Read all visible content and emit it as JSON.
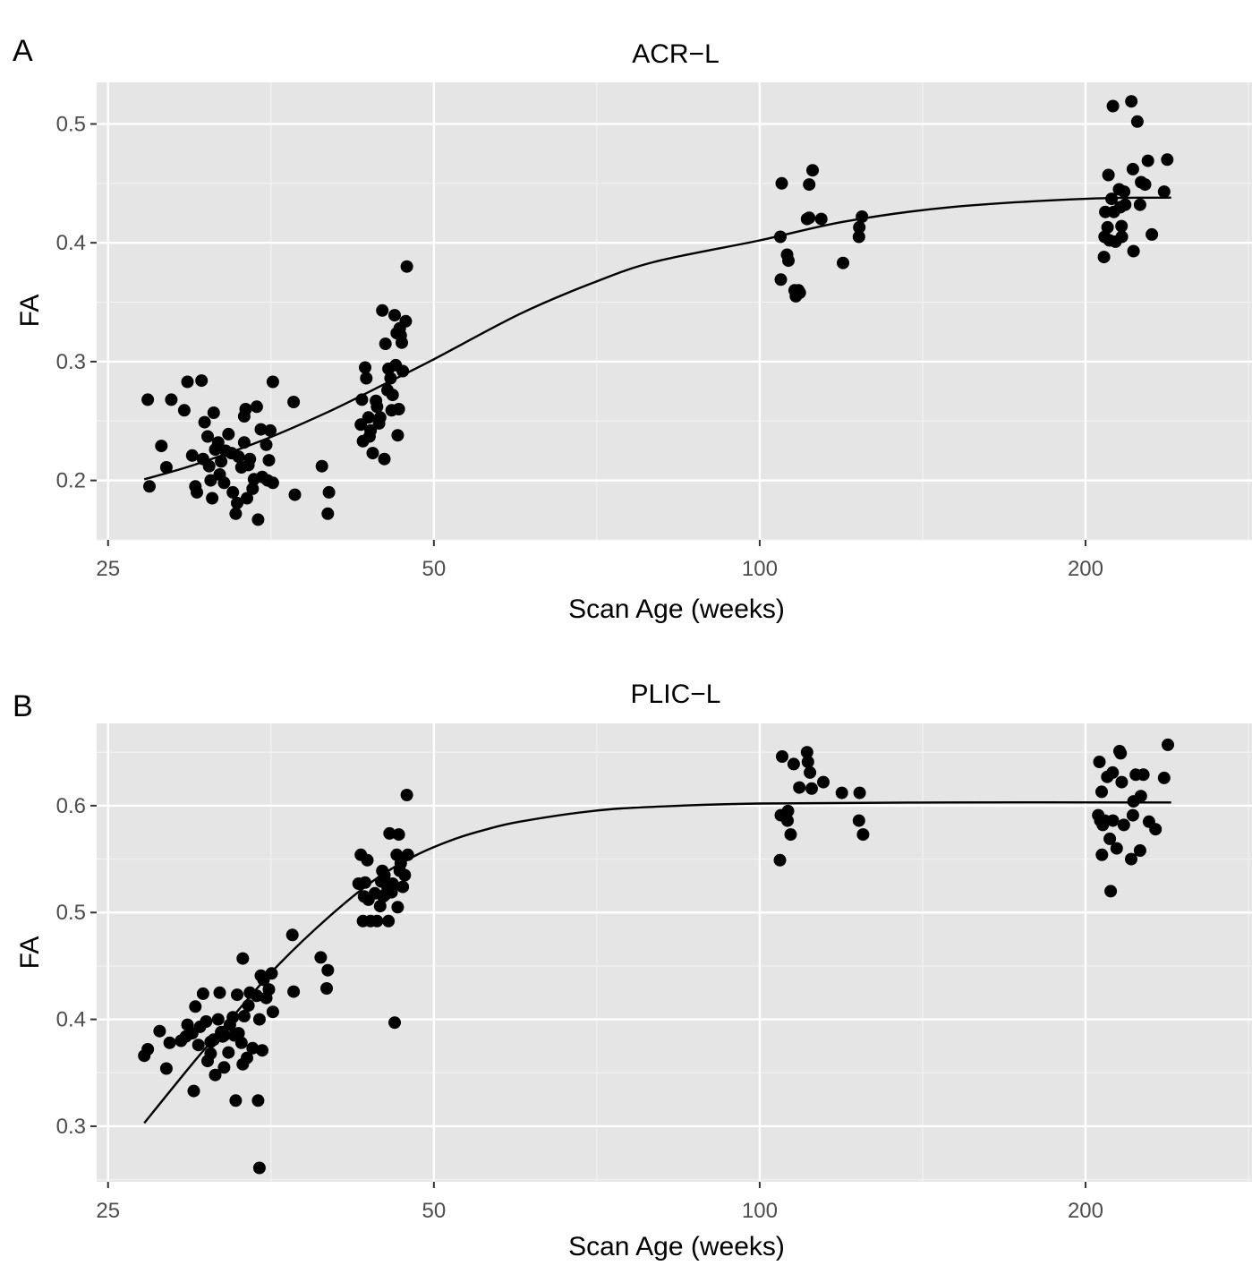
{
  "chart_data": [
    {
      "panel": "A",
      "type": "scatter",
      "title": "ACR−L",
      "xlabel": "Scan Age (weeks)",
      "ylabel": "FA",
      "xscale": "log",
      "xlim": [
        24.4,
        285
      ],
      "ylim": [
        0.15,
        0.535
      ],
      "xticks": [
        25,
        50,
        100,
        200
      ],
      "xtick_labels": [
        "25",
        "50",
        "100",
        "200"
      ],
      "yticks": [
        0.2,
        0.3,
        0.4,
        0.5
      ],
      "ytick_labels": [
        "0.2",
        "0.3",
        "0.4",
        "0.5"
      ],
      "grid": true,
      "points": [
        [
          27.2,
          0.268
        ],
        [
          27.3,
          0.195
        ],
        [
          28,
          0.229
        ],
        [
          28.3,
          0.211
        ],
        [
          28.6,
          0.268
        ],
        [
          29.4,
          0.259
        ],
        [
          29.6,
          0.283
        ],
        [
          29.9,
          0.221
        ],
        [
          30.1,
          0.195
        ],
        [
          30.2,
          0.19
        ],
        [
          30.5,
          0.284
        ],
        [
          30.6,
          0.218
        ],
        [
          30.7,
          0.249
        ],
        [
          30.9,
          0.237
        ],
        [
          31,
          0.212
        ],
        [
          31.1,
          0.2
        ],
        [
          31.2,
          0.185
        ],
        [
          31.3,
          0.257
        ],
        [
          31.4,
          0.226
        ],
        [
          31.6,
          0.232
        ],
        [
          31.7,
          0.205
        ],
        [
          31.8,
          0.216
        ],
        [
          32,
          0.198
        ],
        [
          32.1,
          0.225
        ],
        [
          32.3,
          0.239
        ],
        [
          32.5,
          0.223
        ],
        [
          32.6,
          0.19
        ],
        [
          32.8,
          0.172
        ],
        [
          32.9,
          0.181
        ],
        [
          33,
          0.22
        ],
        [
          33.2,
          0.211
        ],
        [
          33.4,
          0.232
        ],
        [
          33.4,
          0.254
        ],
        [
          33.5,
          0.26
        ],
        [
          33.6,
          0.185
        ],
        [
          33.7,
          0.213
        ],
        [
          33.8,
          0.218
        ],
        [
          34,
          0.193
        ],
        [
          34.1,
          0.201
        ],
        [
          34.3,
          0.262
        ],
        [
          34.4,
          0.167
        ],
        [
          34.6,
          0.243
        ],
        [
          34.7,
          0.203
        ],
        [
          35,
          0.23
        ],
        [
          35.1,
          0.2
        ],
        [
          35.2,
          0.217
        ],
        [
          35.3,
          0.242
        ],
        [
          35.5,
          0.283
        ],
        [
          35.5,
          0.198
        ],
        [
          37.1,
          0.266
        ],
        [
          37.2,
          0.188
        ],
        [
          39.4,
          0.212
        ],
        [
          39.9,
          0.172
        ],
        [
          40,
          0.19
        ],
        [
          42.8,
          0.247
        ],
        [
          42.9,
          0.268
        ],
        [
          43,
          0.233
        ],
        [
          43.2,
          0.295
        ],
        [
          43.3,
          0.286
        ],
        [
          43.5,
          0.253
        ],
        [
          43.6,
          0.237
        ],
        [
          43.7,
          0.242
        ],
        [
          43.9,
          0.223
        ],
        [
          44.2,
          0.267
        ],
        [
          44.3,
          0.262
        ],
        [
          44.5,
          0.248
        ],
        [
          44.6,
          0.253
        ],
        [
          44.8,
          0.343
        ],
        [
          45,
          0.218
        ],
        [
          45.1,
          0.315
        ],
        [
          45.3,
          0.276
        ],
        [
          45.4,
          0.294
        ],
        [
          45.6,
          0.286
        ],
        [
          45.7,
          0.259
        ],
        [
          45.8,
          0.272
        ],
        [
          46,
          0.339
        ],
        [
          46.1,
          0.297
        ],
        [
          46.2,
          0.324
        ],
        [
          46.3,
          0.238
        ],
        [
          46.4,
          0.26
        ],
        [
          46.5,
          0.328
        ],
        [
          46.6,
          0.322
        ],
        [
          46.7,
          0.316
        ],
        [
          46.8,
          0.292
        ],
        [
          47.1,
          0.334
        ],
        [
          47.2,
          0.38
        ],
        [
          104.5,
          0.405
        ],
        [
          104.6,
          0.369
        ],
        [
          104.8,
          0.45
        ],
        [
          106,
          0.39
        ],
        [
          106.3,
          0.385
        ],
        [
          107.7,
          0.36
        ],
        [
          108,
          0.355
        ],
        [
          108.6,
          0.36
        ],
        [
          108.9,
          0.358
        ],
        [
          110.6,
          0.42
        ],
        [
          111.1,
          0.449
        ],
        [
          111.1,
          0.421
        ],
        [
          111.9,
          0.461
        ],
        [
          114,
          0.42
        ],
        [
          119.4,
          0.383
        ],
        [
          123.5,
          0.405
        ],
        [
          123.6,
          0.413
        ],
        [
          124.3,
          0.422
        ],
        [
          208,
          0.388
        ],
        [
          208.3,
          0.405
        ],
        [
          208.6,
          0.426
        ],
        [
          209.6,
          0.413
        ],
        [
          210,
          0.457
        ],
        [
          210.5,
          0.402
        ],
        [
          211.4,
          0.437
        ],
        [
          212,
          0.515
        ],
        [
          212.4,
          0.426
        ],
        [
          213.2,
          0.401
        ],
        [
          214.8,
          0.445
        ],
        [
          215.4,
          0.43
        ],
        [
          215.9,
          0.414
        ],
        [
          216.1,
          0.405
        ],
        [
          217.1,
          0.443
        ],
        [
          217.6,
          0.432
        ],
        [
          220.5,
          0.519
        ],
        [
          221.2,
          0.462
        ],
        [
          221.5,
          0.393
        ],
        [
          223.3,
          0.502
        ],
        [
          224.6,
          0.432
        ],
        [
          225.1,
          0.451
        ],
        [
          227,
          0.449
        ],
        [
          228.4,
          0.469
        ],
        [
          230.3,
          0.407
        ],
        [
          236.4,
          0.443
        ],
        [
          238,
          0.47
        ]
      ],
      "fit_line": {
        "x": [
          27,
          30,
          35,
          40,
          45,
          50,
          60,
          70,
          80,
          100,
          120,
          150,
          200,
          240
        ],
        "y": [
          0.201,
          0.213,
          0.235,
          0.258,
          0.281,
          0.302,
          0.34,
          0.366,
          0.384,
          0.402,
          0.418,
          0.43,
          0.437,
          0.438
        ]
      }
    },
    {
      "panel": "B",
      "type": "scatter",
      "title": "PLIC−L",
      "xlabel": "Scan Age (weeks)",
      "ylabel": "FA",
      "xscale": "log",
      "xlim": [
        24.4,
        285
      ],
      "ylim": [
        0.248,
        0.677
      ],
      "xticks": [
        25,
        50,
        100,
        200
      ],
      "xtick_labels": [
        "25",
        "50",
        "100",
        "200"
      ],
      "yticks": [
        0.3,
        0.4,
        0.5,
        0.6
      ],
      "ytick_labels": [
        "0.3",
        "0.4",
        "0.5",
        "0.6"
      ],
      "grid": true,
      "points": [
        [
          27,
          0.366
        ],
        [
          27.2,
          0.372
        ],
        [
          27.9,
          0.389
        ],
        [
          28.3,
          0.354
        ],
        [
          28.5,
          0.378
        ],
        [
          29.2,
          0.38
        ],
        [
          29.5,
          0.384
        ],
        [
          29.6,
          0.395
        ],
        [
          29.9,
          0.387
        ],
        [
          30,
          0.333
        ],
        [
          30.1,
          0.412
        ],
        [
          30.3,
          0.376
        ],
        [
          30.4,
          0.393
        ],
        [
          30.6,
          0.424
        ],
        [
          30.8,
          0.398
        ],
        [
          30.9,
          0.361
        ],
        [
          31.1,
          0.368
        ],
        [
          31.1,
          0.379
        ],
        [
          31.3,
          0.381
        ],
        [
          31.4,
          0.348
        ],
        [
          31.6,
          0.4
        ],
        [
          31.7,
          0.425
        ],
        [
          31.8,
          0.388
        ],
        [
          31.9,
          0.384
        ],
        [
          32,
          0.355
        ],
        [
          32,
          0.385
        ],
        [
          32.3,
          0.369
        ],
        [
          32.4,
          0.395
        ],
        [
          32.6,
          0.402
        ],
        [
          32.7,
          0.385
        ],
        [
          32.8,
          0.324
        ],
        [
          32.9,
          0.423
        ],
        [
          33,
          0.387
        ],
        [
          33.2,
          0.378
        ],
        [
          33.3,
          0.358
        ],
        [
          33.3,
          0.457
        ],
        [
          33.4,
          0.403
        ],
        [
          33.6,
          0.364
        ],
        [
          33.7,
          0.413
        ],
        [
          33.8,
          0.425
        ],
        [
          34,
          0.373
        ],
        [
          34.3,
          0.422
        ],
        [
          34.4,
          0.324
        ],
        [
          34.5,
          0.261
        ],
        [
          34.5,
          0.4
        ],
        [
          34.6,
          0.441
        ],
        [
          34.7,
          0.371
        ],
        [
          34.8,
          0.437
        ],
        [
          35,
          0.42
        ],
        [
          35.2,
          0.428
        ],
        [
          35.4,
          0.443
        ],
        [
          35.5,
          0.407
        ],
        [
          37,
          0.479
        ],
        [
          37.1,
          0.426
        ],
        [
          39.3,
          0.458
        ],
        [
          39.8,
          0.429
        ],
        [
          39.9,
          0.446
        ],
        [
          42.6,
          0.527
        ],
        [
          42.8,
          0.554
        ],
        [
          43,
          0.492
        ],
        [
          43.1,
          0.515
        ],
        [
          43.2,
          0.528
        ],
        [
          43.4,
          0.549
        ],
        [
          43.5,
          0.512
        ],
        [
          43.7,
          0.492
        ],
        [
          44.1,
          0.518
        ],
        [
          44.3,
          0.492
        ],
        [
          44.6,
          0.506
        ],
        [
          44.7,
          0.529
        ],
        [
          44.8,
          0.539
        ],
        [
          44.9,
          0.515
        ],
        [
          45,
          0.535
        ],
        [
          45.1,
          0.517
        ],
        [
          45.3,
          0.524
        ],
        [
          45.4,
          0.492
        ],
        [
          45.5,
          0.574
        ],
        [
          45.7,
          0.519
        ],
        [
          45.8,
          0.527
        ],
        [
          46,
          0.397
        ],
        [
          46.2,
          0.554
        ],
        [
          46.3,
          0.505
        ],
        [
          46.4,
          0.573
        ],
        [
          46.5,
          0.539
        ],
        [
          46.6,
          0.546
        ],
        [
          46.8,
          0.524
        ],
        [
          47,
          0.535
        ],
        [
          47.2,
          0.61
        ],
        [
          47.3,
          0.554
        ],
        [
          104.4,
          0.549
        ],
        [
          104.6,
          0.591
        ],
        [
          104.9,
          0.646
        ],
        [
          106.1,
          0.586
        ],
        [
          106.2,
          0.595
        ],
        [
          106.8,
          0.573
        ],
        [
          107.5,
          0.639
        ],
        [
          108.8,
          0.617
        ],
        [
          110.6,
          0.65
        ],
        [
          110.8,
          0.641
        ],
        [
          111.3,
          0.631
        ],
        [
          111.7,
          0.616
        ],
        [
          114.5,
          0.622
        ],
        [
          119.1,
          0.612
        ],
        [
          123.5,
          0.586
        ],
        [
          123.7,
          0.612
        ],
        [
          124.6,
          0.573
        ],
        [
          205.5,
          0.591
        ],
        [
          206,
          0.641
        ],
        [
          206.4,
          0.586
        ],
        [
          207,
          0.613
        ],
        [
          207.1,
          0.554
        ],
        [
          207.5,
          0.582
        ],
        [
          208.4,
          0.586
        ],
        [
          209.5,
          0.627
        ],
        [
          210.6,
          0.569
        ],
        [
          211,
          0.52
        ],
        [
          211.9,
          0.631
        ],
        [
          212,
          0.586
        ],
        [
          213.7,
          0.56
        ],
        [
          215,
          0.651
        ],
        [
          215.5,
          0.649
        ],
        [
          216,
          0.622
        ],
        [
          217,
          0.582
        ],
        [
          220.4,
          0.55
        ],
        [
          221.2,
          0.591
        ],
        [
          221.5,
          0.604
        ],
        [
          222.6,
          0.629
        ],
        [
          224.6,
          0.558
        ],
        [
          225,
          0.609
        ],
        [
          226.2,
          0.629
        ],
        [
          228.9,
          0.585
        ],
        [
          232.1,
          0.578
        ],
        [
          236.4,
          0.626
        ],
        [
          238.3,
          0.657
        ]
      ],
      "fit_line": {
        "x": [
          27,
          30,
          33,
          36,
          40,
          44,
          48,
          52,
          56,
          60,
          70,
          80,
          100,
          150,
          240
        ],
        "y": [
          0.303,
          0.36,
          0.409,
          0.452,
          0.496,
          0.53,
          0.553,
          0.568,
          0.578,
          0.585,
          0.595,
          0.599,
          0.602,
          0.603,
          0.603
        ]
      }
    }
  ]
}
